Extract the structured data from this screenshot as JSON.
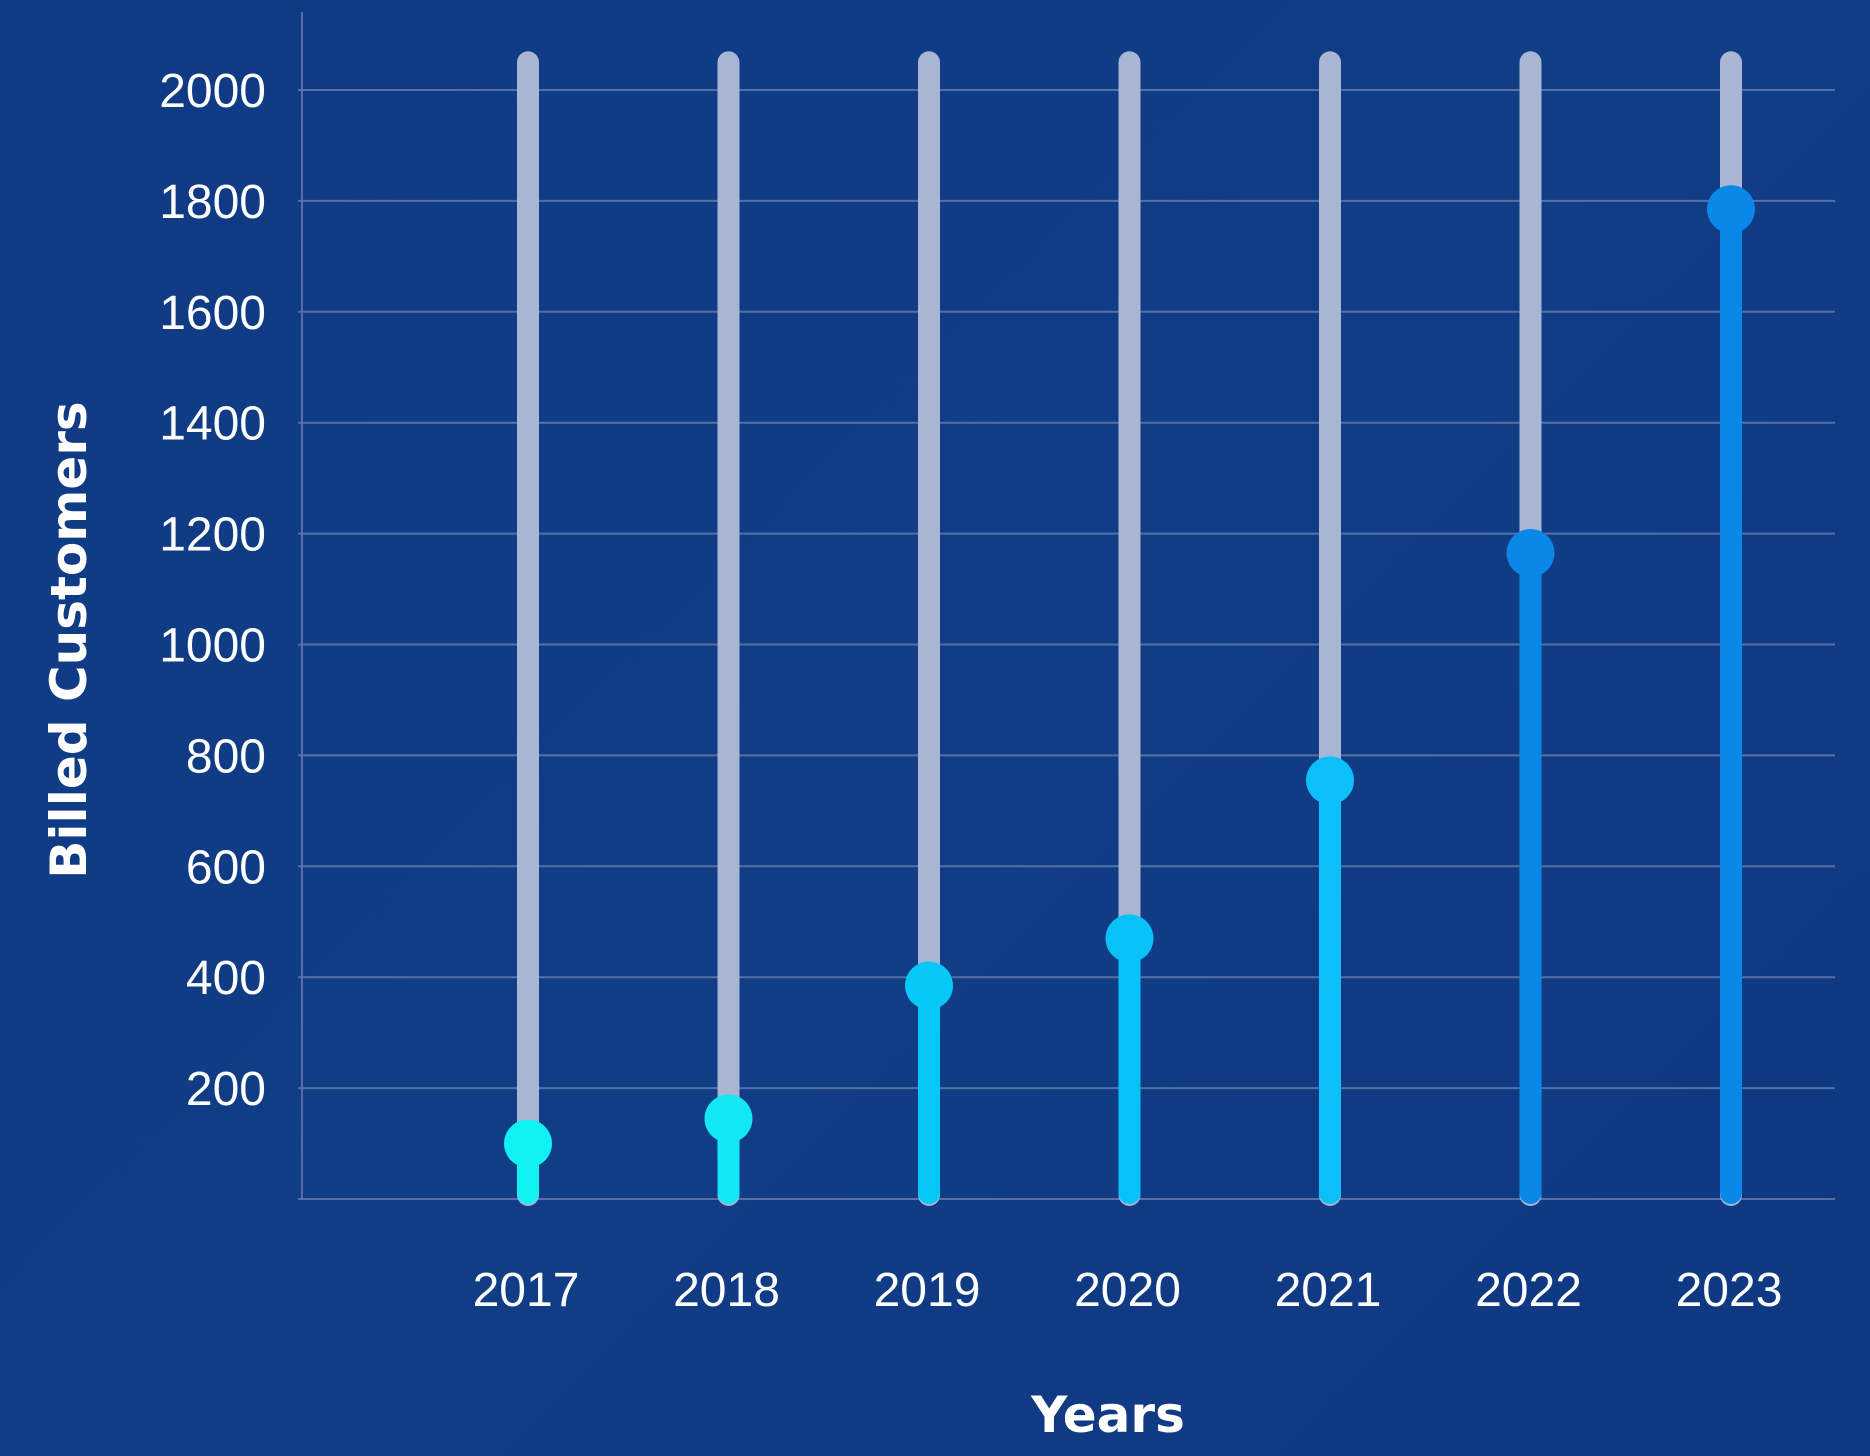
{
  "chart_data": {
    "type": "bar",
    "title": "",
    "xlabel": "Years",
    "ylabel": "Billed Customers",
    "categories": [
      "2017",
      "2018",
      "2019",
      "2020",
      "2021",
      "2022",
      "2023"
    ],
    "values": [
      100,
      145,
      385,
      470,
      755,
      1165,
      1785
    ],
    "ylim": [
      0,
      2000
    ],
    "yticks": [
      200,
      400,
      600,
      800,
      1000,
      1200,
      1400,
      1600,
      1800,
      2000
    ],
    "grid": true,
    "track_max": 2050,
    "colors": {
      "background": "#103a84",
      "track": "#a9b6d3",
      "grid": "#5670a6",
      "axis_text": "#ffffff",
      "bars": [
        "#10f2f2",
        "#12e8f4",
        "#06c8f6",
        "#06c2f6",
        "#0bc0f8",
        "#0a88e8",
        "#0a88e8"
      ]
    }
  }
}
